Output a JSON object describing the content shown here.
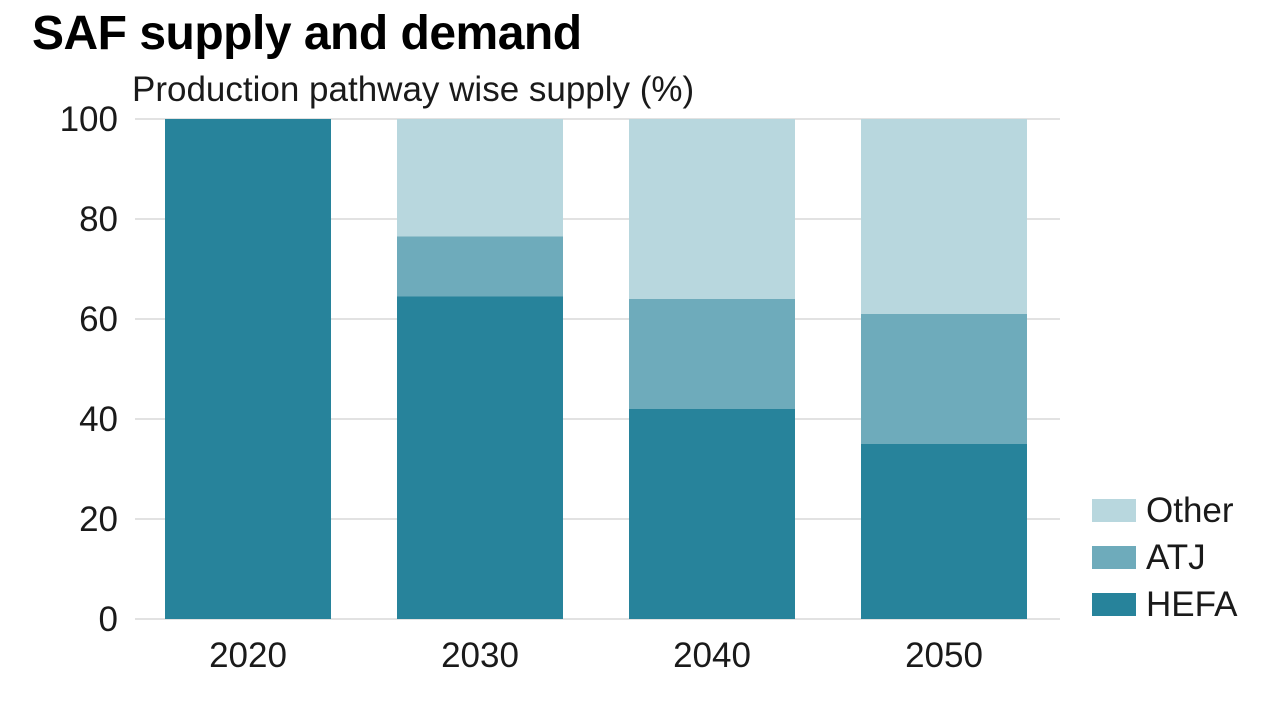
{
  "title": "SAF supply and demand",
  "subtitle": "Production pathway wise supply (%)",
  "chart_data": {
    "type": "bar",
    "stacked": true,
    "categories": [
      "2020",
      "2030",
      "2040",
      "2050"
    ],
    "series": [
      {
        "name": "HEFA",
        "values": [
          100,
          64.5,
          42,
          35
        ],
        "color": "#27839b"
      },
      {
        "name": "ATJ",
        "values": [
          0,
          12,
          22,
          26
        ],
        "color": "#6eabbb"
      },
      {
        "name": "Other",
        "values": [
          0,
          23.5,
          36,
          39
        ],
        "color": "#b8d7de"
      }
    ],
    "ylim": [
      0,
      100
    ],
    "yticks": [
      "0",
      "20",
      "40",
      "60",
      "80",
      "100"
    ],
    "xlabel": "",
    "ylabel": "",
    "grid": true,
    "legend_position": "right"
  },
  "legend": {
    "items": [
      {
        "label": "Other",
        "color": "#b8d7de"
      },
      {
        "label": "ATJ",
        "color": "#6eabbb"
      },
      {
        "label": "HEFA",
        "color": "#27839b"
      }
    ]
  }
}
